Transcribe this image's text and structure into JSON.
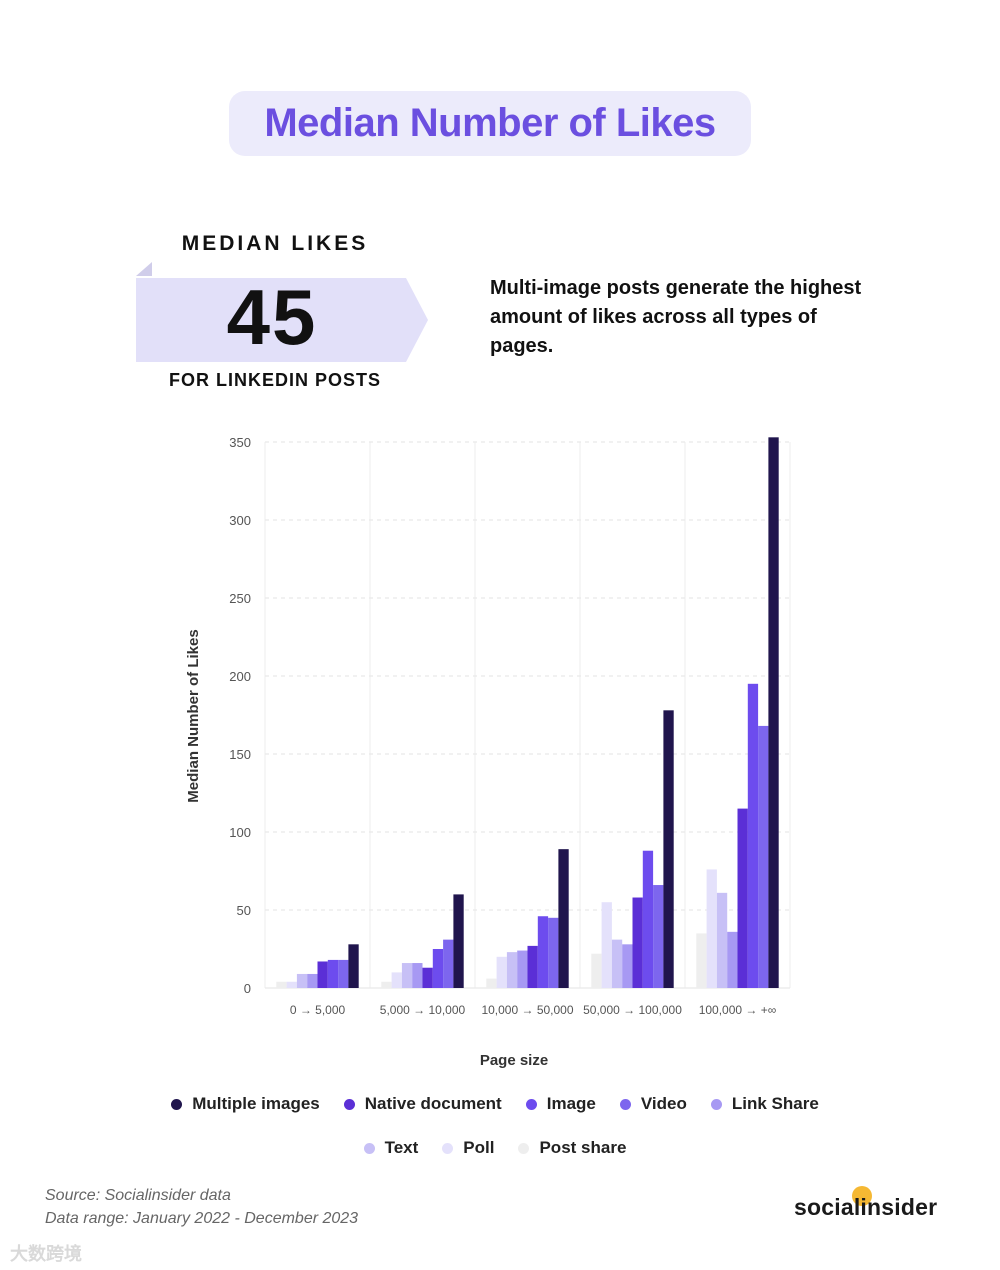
{
  "header": {
    "title": "Median Number of Likes"
  },
  "stat": {
    "top_label": "MEDIAN LIKES",
    "value": "45",
    "bottom_label": "FOR LINKEDIN POSTS"
  },
  "description": "Multi-image posts generate the highest amount of likes across all types of pages.",
  "chart_data": {
    "type": "bar",
    "xlabel": "Page size",
    "ylabel": "Median Number of Likes",
    "ylim": [
      0,
      350
    ],
    "yticks": [
      0,
      50,
      100,
      150,
      200,
      250,
      300,
      350
    ],
    "grid": true,
    "legend_position": "bottom",
    "categories": [
      "0 → 5,000",
      "5,000 → 10,000",
      "10,000 → 50,000",
      "50,000 → 100,000",
      "100,000 → +∞"
    ],
    "series": [
      {
        "name": "Post share",
        "color": "#eeeeee",
        "values": [
          4,
          4,
          6,
          22,
          35
        ]
      },
      {
        "name": "Poll",
        "color": "#e4e1fb",
        "values": [
          4,
          10,
          20,
          55,
          76
        ]
      },
      {
        "name": "Text",
        "color": "#c7c0f6",
        "values": [
          9,
          16,
          23,
          31,
          61
        ]
      },
      {
        "name": "Link Share",
        "color": "#a799f3",
        "values": [
          9,
          16,
          24,
          28,
          36
        ]
      },
      {
        "name": "Native document",
        "color": "#5b2fd6",
        "values": [
          17,
          13,
          27,
          58,
          115
        ]
      },
      {
        "name": "Image",
        "color": "#6d4cee",
        "values": [
          18,
          25,
          46,
          88,
          195
        ]
      },
      {
        "name": "Video",
        "color": "#7d66ee",
        "values": [
          18,
          31,
          45,
          66,
          168
        ]
      },
      {
        "name": "Multiple images",
        "color": "#20154d",
        "values": [
          28,
          60,
          89,
          178,
          353
        ]
      }
    ]
  },
  "legend": [
    {
      "label": "Multiple images",
      "color": "#20154d"
    },
    {
      "label": "Native document",
      "color": "#5b2fd6"
    },
    {
      "label": "Image",
      "color": "#6d4cee"
    },
    {
      "label": "Video",
      "color": "#7d66ee"
    },
    {
      "label": "Link Share",
      "color": "#a799f3"
    },
    {
      "label": "Text",
      "color": "#c7c0f6"
    },
    {
      "label": "Poll",
      "color": "#e4e1fb"
    },
    {
      "label": "Post share",
      "color": "#eeeeee"
    }
  ],
  "footer": {
    "source": "Source: Socialinsider data",
    "range": "Data range: January 2022 - December 2023",
    "brand": "socialinsider",
    "watermark": "大数跨境"
  }
}
